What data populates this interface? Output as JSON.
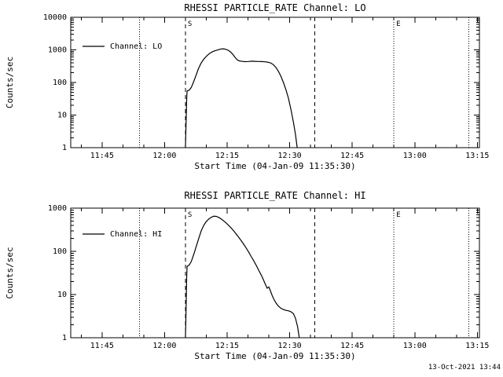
{
  "page": {
    "background": "#ffffff",
    "foreground": "#000000",
    "timestamp": "13-Oct-2021 13:44"
  },
  "chart_data": [
    {
      "type": "line",
      "title": "RHESSI PARTICLE_RATE Channel: LO",
      "xlabel": "Start Time (04-Jan-09 11:35:30)",
      "ylabel": "Counts/sec",
      "y_scale": "log",
      "ylim": [
        1,
        10000
      ],
      "y_ticks": [
        1,
        10,
        100,
        1000,
        10000
      ],
      "y_tick_labels": [
        "1",
        "10",
        "100",
        "1000",
        "10000"
      ],
      "xlim_minutes": [
        2,
        100
      ],
      "x_ticks_minutes": [
        9.5,
        24.5,
        39.5,
        54.5,
        69.5,
        84.5,
        99.5
      ],
      "x_tick_labels": [
        "11:45",
        "12:00",
        "12:15",
        "12:30",
        "12:45",
        "13:00",
        "13:15"
      ],
      "x_minor_step_minutes": 5,
      "legend": {
        "label": "Channel: LO"
      },
      "markers": [
        {
          "x": 18.5,
          "style": "dotted",
          "label": ""
        },
        {
          "x": 29.5,
          "style": "dashed",
          "label": "S"
        },
        {
          "x": 60.5,
          "style": "dashed",
          "label": ""
        },
        {
          "x": 79.5,
          "style": "dotted",
          "label": "E"
        },
        {
          "x": 97.5,
          "style": "dotted",
          "label": ""
        }
      ],
      "series": [
        {
          "name": "Channel: LO",
          "points": [
            [
              29.5,
              1
            ],
            [
              29.6,
              3
            ],
            [
              29.8,
              30
            ],
            [
              29.9,
              55
            ],
            [
              30.4,
              58
            ],
            [
              30.9,
              70
            ],
            [
              31.4,
              100
            ],
            [
              32.0,
              160
            ],
            [
              32.6,
              260
            ],
            [
              33.2,
              380
            ],
            [
              33.9,
              520
            ],
            [
              34.6,
              650
            ],
            [
              35.3,
              780
            ],
            [
              36.0,
              880
            ],
            [
              36.7,
              950
            ],
            [
              37.4,
              1010
            ],
            [
              38.0,
              1060
            ],
            [
              38.6,
              1080
            ],
            [
              39.2,
              1040
            ],
            [
              39.7,
              980
            ],
            [
              40.3,
              870
            ],
            [
              40.9,
              720
            ],
            [
              41.4,
              590
            ],
            [
              41.9,
              500
            ],
            [
              42.4,
              460
            ],
            [
              43.0,
              445
            ],
            [
              43.8,
              435
            ],
            [
              44.6,
              440
            ],
            [
              45.4,
              450
            ],
            [
              46.2,
              445
            ],
            [
              47.0,
              440
            ],
            [
              47.8,
              438
            ],
            [
              48.6,
              430
            ],
            [
              49.4,
              415
            ],
            [
              50.0,
              395
            ],
            [
              50.6,
              350
            ],
            [
              51.2,
              290
            ],
            [
              51.8,
              220
            ],
            [
              52.4,
              155
            ],
            [
              53.0,
              100
            ],
            [
              53.6,
              60
            ],
            [
              54.2,
              33
            ],
            [
              54.8,
              15
            ],
            [
              55.4,
              6
            ],
            [
              55.9,
              2.5
            ],
            [
              56.3,
              1
            ]
          ]
        }
      ]
    },
    {
      "type": "line",
      "title": "RHESSI PARTICLE_RATE Channel: HI",
      "xlabel": "Start Time (04-Jan-09 11:35:30)",
      "ylabel": "Counts/sec",
      "y_scale": "log",
      "ylim": [
        1,
        1000
      ],
      "y_ticks": [
        1,
        10,
        100,
        1000
      ],
      "y_tick_labels": [
        "1",
        "10",
        "100",
        "1000"
      ],
      "xlim_minutes": [
        2,
        100
      ],
      "x_ticks_minutes": [
        9.5,
        24.5,
        39.5,
        54.5,
        69.5,
        84.5,
        99.5
      ],
      "x_tick_labels": [
        "11:45",
        "12:00",
        "12:15",
        "12:30",
        "12:45",
        "13:00",
        "13:15"
      ],
      "x_minor_step_minutes": 5,
      "legend": {
        "label": "Channel: HI"
      },
      "markers": [
        {
          "x": 18.5,
          "style": "dotted",
          "label": ""
        },
        {
          "x": 29.5,
          "style": "dashed",
          "label": "S"
        },
        {
          "x": 60.5,
          "style": "dashed",
          "label": ""
        },
        {
          "x": 79.5,
          "style": "dotted",
          "label": "E"
        },
        {
          "x": 97.5,
          "style": "dotted",
          "label": ""
        }
      ],
      "series": [
        {
          "name": "Channel: HI",
          "points": [
            [
              29.5,
              1
            ],
            [
              29.6,
              2.5
            ],
            [
              29.8,
              25
            ],
            [
              29.9,
              45
            ],
            [
              30.4,
              48
            ],
            [
              30.9,
              58
            ],
            [
              31.5,
              85
            ],
            [
              32.1,
              130
            ],
            [
              32.7,
              200
            ],
            [
              33.3,
              300
            ],
            [
              33.9,
              400
            ],
            [
              34.5,
              490
            ],
            [
              35.1,
              560
            ],
            [
              35.7,
              615
            ],
            [
              36.3,
              650
            ],
            [
              36.9,
              645
            ],
            [
              37.5,
              610
            ],
            [
              38.1,
              560
            ],
            [
              38.7,
              505
            ],
            [
              39.3,
              450
            ],
            [
              39.9,
              395
            ],
            [
              40.5,
              345
            ],
            [
              41.1,
              295
            ],
            [
              41.7,
              250
            ],
            [
              42.3,
              210
            ],
            [
              42.9,
              175
            ],
            [
              43.5,
              145
            ],
            [
              44.1,
              118
            ],
            [
              44.7,
              95
            ],
            [
              45.3,
              75
            ],
            [
              45.9,
              60
            ],
            [
              46.5,
              47
            ],
            [
              47.1,
              36
            ],
            [
              47.7,
              28
            ],
            [
              48.2,
              22
            ],
            [
              48.7,
              17
            ],
            [
              49.1,
              14
            ],
            [
              49.5,
              15
            ],
            [
              49.9,
              12
            ],
            [
              50.3,
              9.5
            ],
            [
              50.8,
              7.5
            ],
            [
              51.3,
              6.2
            ],
            [
              51.8,
              5.4
            ],
            [
              52.4,
              4.8
            ],
            [
              53.0,
              4.5
            ],
            [
              53.6,
              4.3
            ],
            [
              54.2,
              4.2
            ],
            [
              54.8,
              4.0
            ],
            [
              55.4,
              3.6
            ],
            [
              55.9,
              2.8
            ],
            [
              56.4,
              1.8
            ],
            [
              56.8,
              1
            ]
          ]
        }
      ]
    }
  ]
}
